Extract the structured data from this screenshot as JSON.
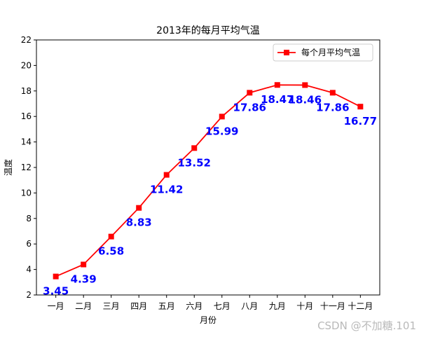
{
  "chart_data": {
    "type": "line",
    "title": "2013年的每月平均气温",
    "xlabel": "月份",
    "ylabel": "温度",
    "categories": [
      "一月",
      "二月",
      "三月",
      "四月",
      "五月",
      "六月",
      "七月",
      "八月",
      "九月",
      "十月",
      "十一月",
      "十二月"
    ],
    "series": [
      {
        "name": "每个月平均气温",
        "color": "#ff0000",
        "marker": "square",
        "values": [
          3.45,
          4.39,
          6.58,
          8.83,
          11.42,
          13.52,
          15.99,
          17.86,
          18.47,
          18.46,
          17.86,
          16.77
        ]
      }
    ],
    "data_labels": [
      "3.45",
      "4.39",
      "6.58",
      "8.83",
      "11.42",
      "13.52",
      "15.99",
      "17.86",
      "18.47",
      "18.46",
      "17.86",
      "16.77"
    ],
    "data_label_color": "#0000ff",
    "ylim": [
      2,
      22
    ],
    "yticks": [
      "2",
      "4",
      "6",
      "8",
      "10",
      "12",
      "14",
      "16",
      "18",
      "20",
      "22"
    ],
    "grid": false,
    "legend_position": "top-right"
  },
  "watermark": "CSDN @不加糖.101"
}
